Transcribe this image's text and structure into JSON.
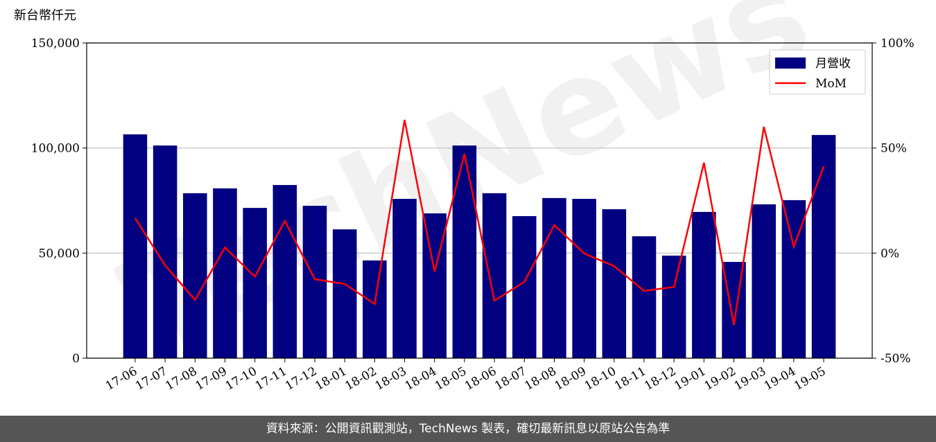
{
  "chart_data": {
    "type": "bar_line",
    "y_label": "新台幣仟元",
    "watermark": "TechNews",
    "categories": [
      "17-06",
      "17-07",
      "17-08",
      "17-09",
      "17-10",
      "17-11",
      "17-12",
      "18-01",
      "18-02",
      "18-03",
      "18-04",
      "18-05",
      "18-06",
      "18-07",
      "18-08",
      "18-09",
      "18-10",
      "18-11",
      "18-12",
      "19-01",
      "19-02",
      "19-03",
      "19-04",
      "19-05"
    ],
    "series": [
      {
        "name": "月營收",
        "type": "bar",
        "color": "#000080",
        "values": [
          106500,
          101200,
          78500,
          80800,
          71500,
          82400,
          72500,
          61300,
          46500,
          75800,
          68900,
          101200,
          78500,
          67600,
          76200,
          75800,
          70900,
          58000,
          48800,
          69600,
          45800,
          73200,
          75200,
          106200
        ]
      },
      {
        "name": "MoM",
        "type": "line",
        "axis": "y2",
        "color": "#ff0000",
        "values": [
          16.6,
          -5.8,
          -22.3,
          2.7,
          -11.2,
          15.3,
          -12.4,
          -14.7,
          -24.2,
          63.4,
          -8.8,
          47.2,
          -22.6,
          -13.7,
          13.3,
          -0.2,
          -6.2,
          -18.0,
          -16.1,
          43.0,
          -34.2,
          60.1,
          3.1,
          41.3
        ]
      }
    ],
    "ylim": [
      0,
      150000
    ],
    "yticks": [
      0,
      {
        "value": 50000,
        "label": "50,000"
      },
      {
        "value": 100000,
        "label": "100,000"
      },
      {
        "value": 150000,
        "label": "150,000"
      }
    ],
    "y2lim": [
      -50,
      100
    ],
    "y2ticks": [
      {
        "value": -50,
        "label": "-50%"
      },
      {
        "value": 0,
        "label": "0%"
      },
      {
        "value": 50,
        "label": "50%"
      },
      {
        "value": 100,
        "label": "100%"
      }
    ],
    "grid": true,
    "legend": "upper right",
    "footer": "資料來源：公開資訊觀測站，TechNews 製表，確切最新訊息以原站公告為準"
  }
}
